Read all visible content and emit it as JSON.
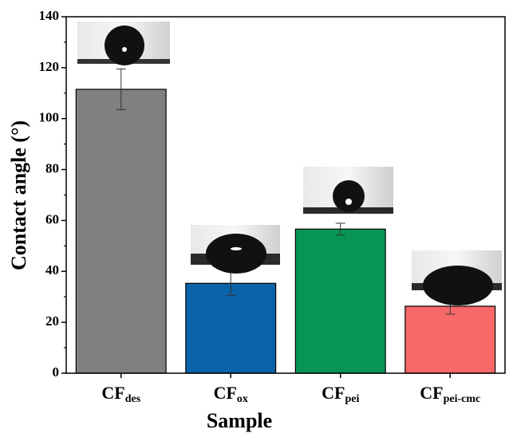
{
  "chart_data": {
    "type": "bar",
    "categories": [
      {
        "text": "CF",
        "subscript": "des"
      },
      {
        "text": "CF",
        "subscript": "ox"
      },
      {
        "text": "CF",
        "subscript": "pei"
      },
      {
        "text": "CF",
        "subscript": "pei-cmc"
      }
    ],
    "values": [
      111.5,
      35.3,
      56.6,
      26.3
    ],
    "errors": [
      8,
      4.8,
      2.3,
      3.1
    ],
    "colors": [
      "#808080",
      "#0a62a8",
      "#079455",
      "#f86868"
    ],
    "xlabel": "Sample",
    "ylabel": "Contact angle (°)",
    "ylim": [
      0,
      140
    ],
    "yticks": [
      0,
      20,
      40,
      60,
      80,
      100,
      120,
      140
    ],
    "yminorticks": [
      10,
      30,
      50,
      70,
      90,
      110,
      130
    ]
  }
}
